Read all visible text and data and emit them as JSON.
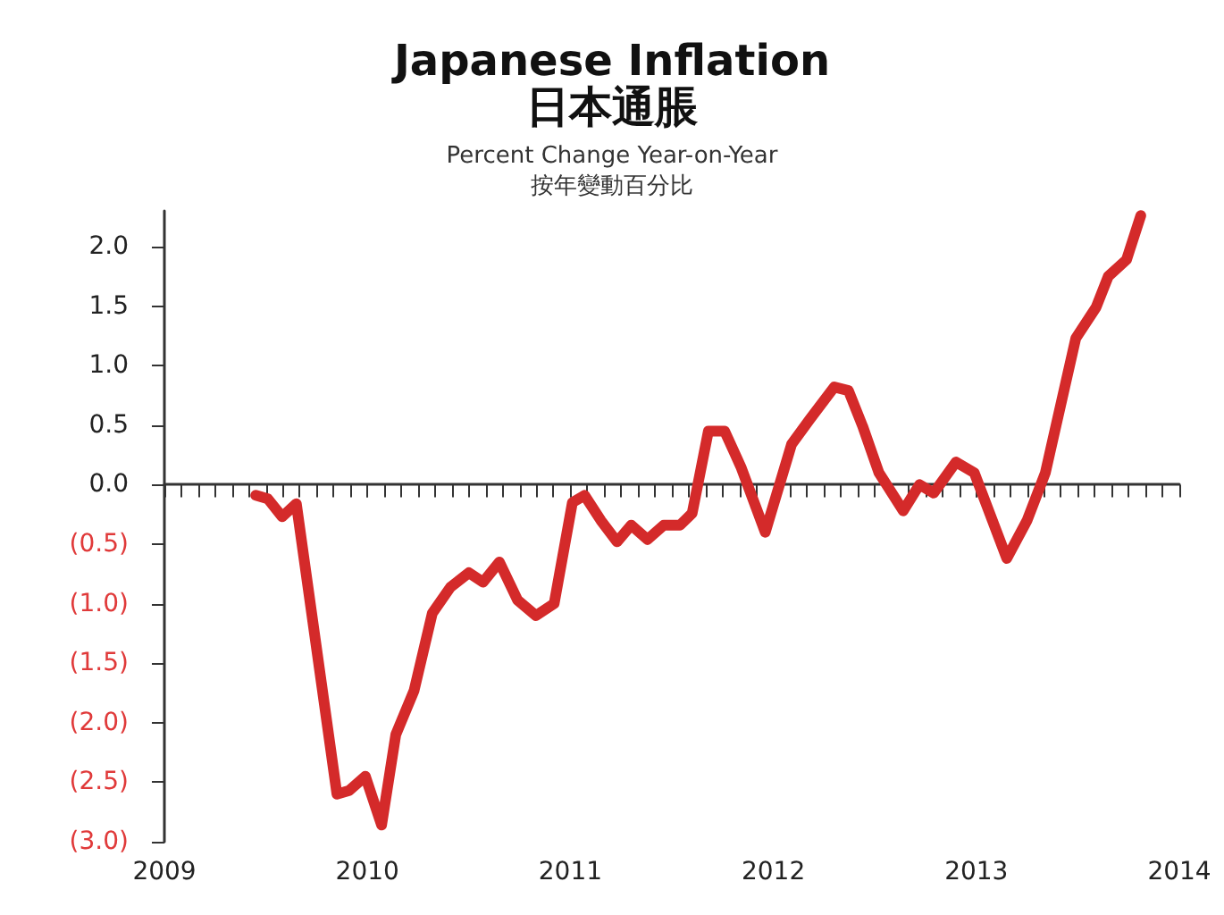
{
  "chart_data": {
    "type": "line",
    "title": "Japanese Inflation\n日本通脹",
    "subtitle": "Percent Change Year-on-Year\n按年變動百分比",
    "x": [
      2009.45,
      2009.51,
      2009.58,
      2009.65,
      2009.85,
      2009.91,
      2009.99,
      2010.07,
      2010.14,
      2010.23,
      2010.32,
      2010.41,
      2010.5,
      2010.57,
      2010.65,
      2010.74,
      2010.83,
      2010.92,
      2011.01,
      2011.07,
      2011.15,
      2011.23,
      2011.3,
      2011.38,
      2011.46,
      2011.54,
      2011.6,
      2011.68,
      2011.76,
      2011.84,
      2011.96,
      2012.09,
      2012.18,
      2012.3,
      2012.37,
      2012.44,
      2012.52,
      2012.64,
      2012.72,
      2012.79,
      2012.9,
      2012.99,
      2013.15,
      2013.25,
      2013.34,
      2013.49,
      2013.59,
      2013.65,
      2013.74,
      2013.81
    ],
    "series": [
      {
        "color": "#d42a2a",
        "values": [
          -0.09,
          -0.12,
          -0.27,
          -0.16,
          -2.6,
          -2.57,
          -2.45,
          -2.86,
          -2.1,
          -1.73,
          -1.08,
          -0.86,
          -0.74,
          -0.82,
          -0.65,
          -0.97,
          -1.1,
          -1.0,
          -0.15,
          -0.09,
          -0.3,
          -0.48,
          -0.34,
          -0.46,
          -0.34,
          -0.34,
          -0.24,
          0.45,
          0.45,
          0.15,
          -0.4,
          0.34,
          0.55,
          0.82,
          0.79,
          0.49,
          0.1,
          -0.22,
          0.0,
          -0.07,
          0.19,
          0.1,
          -0.62,
          -0.3,
          0.1,
          1.23,
          1.49,
          1.75,
          1.89,
          2.26
        ]
      }
    ],
    "xlim": [
      2009,
      2014
    ],
    "xticks": [
      2009,
      2010,
      2011,
      2012,
      2013,
      2014
    ],
    "ylim": [
      -3,
      2.3
    ],
    "yticks": [
      {
        "value": 2,
        "label": "2.0"
      },
      {
        "value": 1.5,
        "label": "1.5"
      },
      {
        "value": 1,
        "label": "1.0"
      },
      {
        "value": 0.5,
        "label": "0.5"
      },
      {
        "value": 0,
        "label": "0.0"
      },
      {
        "value": -0.5,
        "label": "(0.5)"
      },
      {
        "value": -1,
        "label": "(1.0)"
      },
      {
        "value": -1.5,
        "label": "(1.5)"
      },
      {
        "value": -2,
        "label": "(2.0)"
      },
      {
        "value": -2.5,
        "label": "(2.5)"
      },
      {
        "value": -3,
        "label": "(3.0)"
      }
    ],
    "marker": "none",
    "line_style": "solid"
  }
}
